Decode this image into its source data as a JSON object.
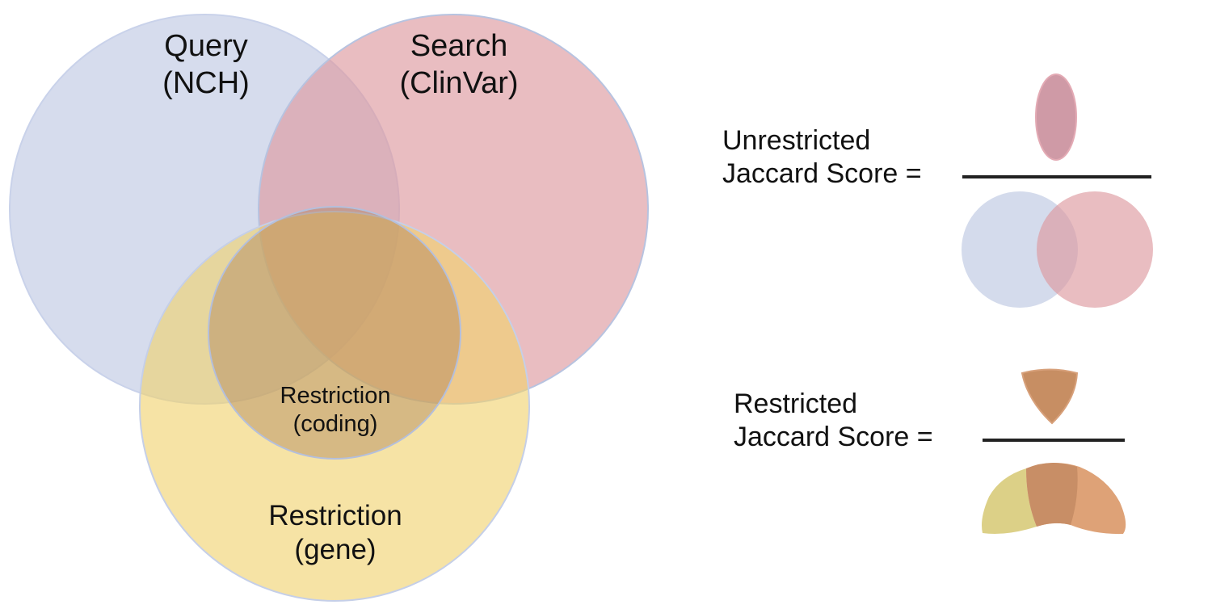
{
  "venn": {
    "query": {
      "line1": "Query",
      "line2": "(NCH)"
    },
    "search": {
      "line1": "Search",
      "line2": "(ClinVar)"
    },
    "restriction_gene": {
      "line1": "Restriction",
      "line2": "(gene)"
    },
    "restriction_coding": {
      "line1": "Restriction",
      "line2": "(coding)"
    }
  },
  "formulas": {
    "unrestricted": {
      "line1": "Unrestricted",
      "line2": "Jaccard Score ="
    },
    "restricted": {
      "line1": "Restricted",
      "line2": "Jaccard Score ="
    }
  },
  "colors": {
    "query_blue": "#c6cfe6",
    "search_pink": "#e5a8ad",
    "gene_yellow": "#f2d880",
    "coding_brown": "#b8875d",
    "outline": "#b7c3e0"
  }
}
